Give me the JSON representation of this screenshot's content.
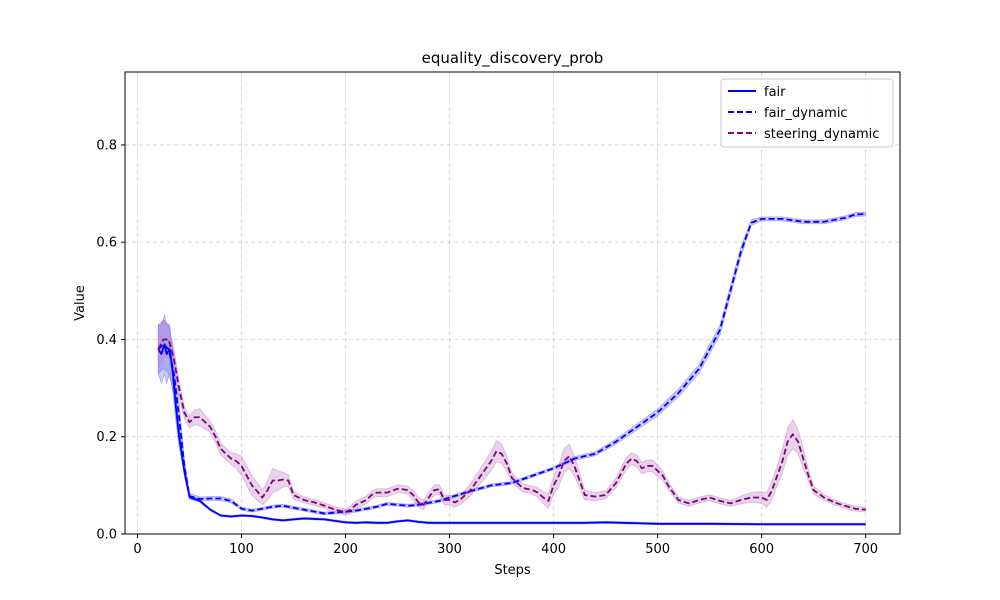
{
  "chart_data": {
    "type": "line",
    "title": "equality_discovery_prob",
    "xlabel": "Steps",
    "ylabel": "Value",
    "xlim": [
      -12,
      733
    ],
    "ylim": [
      0,
      0.95
    ],
    "xticks": [
      0,
      100,
      200,
      300,
      400,
      500,
      600,
      700
    ],
    "yticks": [
      0.0,
      0.2,
      0.4,
      0.6,
      0.8
    ],
    "xtick_labels": [
      "0",
      "100",
      "200",
      "300",
      "400",
      "500",
      "600",
      "700"
    ],
    "ytick_labels": [
      "0.0",
      "0.2",
      "0.4",
      "0.6",
      "0.8"
    ],
    "grid": true,
    "legend_position": "top-right",
    "series": [
      {
        "name": "fair",
        "style": "solid",
        "color": "#0000ff",
        "band_color": "#6b6bff",
        "x": [
          20,
          23,
          26,
          28,
          31,
          34,
          37,
          40,
          45,
          50,
          60,
          70,
          80,
          90,
          100,
          110,
          120,
          130,
          140,
          150,
          160,
          170,
          180,
          190,
          200,
          210,
          220,
          230,
          240,
          250,
          260,
          270,
          280,
          300,
          350,
          400,
          430,
          450,
          500,
          550,
          600,
          650,
          700
        ],
        "y": [
          0.38,
          0.37,
          0.39,
          0.37,
          0.38,
          0.33,
          0.26,
          0.2,
          0.13,
          0.076,
          0.068,
          0.05,
          0.038,
          0.036,
          0.038,
          0.037,
          0.034,
          0.03,
          0.028,
          0.03,
          0.032,
          0.031,
          0.03,
          0.027,
          0.024,
          0.023,
          0.024,
          0.023,
          0.023,
          0.026,
          0.028,
          0.025,
          0.023,
          0.023,
          0.023,
          0.023,
          0.023,
          0.024,
          0.021,
          0.021,
          0.02,
          0.02,
          0.02
        ],
        "band": [
          0.05,
          0.06,
          0.06,
          0.06,
          0.05,
          0.04,
          0.03,
          0.02,
          0.01,
          0.004,
          0.003,
          0.002,
          0.002,
          0.002,
          0.002,
          0.002,
          0.002,
          0.002,
          0.002,
          0.002,
          0.002,
          0.002,
          0.002,
          0.002,
          0.002,
          0.002,
          0.002,
          0.002,
          0.002,
          0.002,
          0.002,
          0.002,
          0.002,
          0.002,
          0.002,
          0.002,
          0.002,
          0.002,
          0.002,
          0.002,
          0.002,
          0.002,
          0.002
        ]
      },
      {
        "name": "fair_dynamic",
        "style": "dashed",
        "color": "#0000ff",
        "band_color": "#6b6bff",
        "x": [
          20,
          25,
          30,
          35,
          40,
          45,
          50,
          60,
          70,
          80,
          90,
          100,
          110,
          120,
          130,
          140,
          150,
          160,
          170,
          180,
          190,
          200,
          210,
          220,
          230,
          240,
          250,
          260,
          270,
          280,
          290,
          300,
          320,
          340,
          360,
          380,
          400,
          420,
          440,
          460,
          480,
          500,
          520,
          540,
          560,
          580,
          590,
          600,
          620,
          640,
          660,
          680,
          690,
          700
        ],
        "y": [
          0.38,
          0.39,
          0.38,
          0.33,
          0.24,
          0.14,
          0.078,
          0.072,
          0.073,
          0.073,
          0.068,
          0.052,
          0.048,
          0.052,
          0.056,
          0.058,
          0.054,
          0.05,
          0.046,
          0.042,
          0.044,
          0.046,
          0.048,
          0.052,
          0.056,
          0.062,
          0.06,
          0.058,
          0.06,
          0.064,
          0.068,
          0.075,
          0.088,
          0.1,
          0.105,
          0.12,
          0.135,
          0.155,
          0.165,
          0.19,
          0.22,
          0.25,
          0.29,
          0.34,
          0.42,
          0.58,
          0.64,
          0.648,
          0.648,
          0.642,
          0.642,
          0.65,
          0.657,
          0.658
        ],
        "band": [
          0.05,
          0.05,
          0.05,
          0.04,
          0.03,
          0.015,
          0.006,
          0.004,
          0.004,
          0.004,
          0.004,
          0.003,
          0.003,
          0.003,
          0.003,
          0.003,
          0.003,
          0.003,
          0.003,
          0.003,
          0.003,
          0.003,
          0.003,
          0.003,
          0.003,
          0.003,
          0.003,
          0.003,
          0.003,
          0.003,
          0.003,
          0.003,
          0.003,
          0.003,
          0.003,
          0.003,
          0.003,
          0.004,
          0.004,
          0.005,
          0.006,
          0.007,
          0.008,
          0.009,
          0.01,
          0.01,
          0.006,
          0.004,
          0.004,
          0.004,
          0.004,
          0.004,
          0.004,
          0.004
        ]
      },
      {
        "name": "steering_dynamic",
        "style": "dashed",
        "color": "#800080",
        "band_color": "#bf80bf",
        "x": [
          20,
          25,
          30,
          35,
          40,
          45,
          50,
          55,
          60,
          65,
          70,
          75,
          80,
          85,
          90,
          95,
          100,
          105,
          110,
          115,
          120,
          125,
          130,
          135,
          140,
          145,
          150,
          160,
          170,
          180,
          190,
          200,
          205,
          210,
          215,
          220,
          225,
          230,
          240,
          250,
          255,
          260,
          265,
          270,
          275,
          280,
          285,
          290,
          295,
          300,
          305,
          310,
          320,
          330,
          340,
          345,
          350,
          355,
          360,
          370,
          380,
          385,
          390,
          395,
          400,
          405,
          410,
          415,
          420,
          425,
          430,
          440,
          450,
          460,
          470,
          475,
          480,
          485,
          490,
          495,
          500,
          505,
          510,
          520,
          530,
          540,
          550,
          560,
          570,
          580,
          590,
          600,
          605,
          610,
          615,
          620,
          625,
          630,
          635,
          640,
          645,
          650,
          660,
          670,
          680,
          690,
          700
        ],
        "y": [
          0.38,
          0.4,
          0.4,
          0.36,
          0.3,
          0.25,
          0.23,
          0.24,
          0.24,
          0.23,
          0.22,
          0.2,
          0.175,
          0.165,
          0.155,
          0.15,
          0.14,
          0.12,
          0.1,
          0.088,
          0.075,
          0.09,
          0.11,
          0.11,
          0.112,
          0.11,
          0.08,
          0.07,
          0.065,
          0.058,
          0.05,
          0.045,
          0.05,
          0.06,
          0.065,
          0.07,
          0.08,
          0.085,
          0.085,
          0.093,
          0.092,
          0.09,
          0.08,
          0.065,
          0.06,
          0.075,
          0.09,
          0.092,
          0.07,
          0.07,
          0.065,
          0.07,
          0.09,
          0.12,
          0.15,
          0.17,
          0.165,
          0.145,
          0.115,
          0.095,
          0.09,
          0.085,
          0.075,
          0.068,
          0.1,
          0.12,
          0.15,
          0.16,
          0.14,
          0.11,
          0.08,
          0.077,
          0.08,
          0.105,
          0.145,
          0.155,
          0.15,
          0.135,
          0.14,
          0.14,
          0.13,
          0.12,
          0.1,
          0.07,
          0.063,
          0.07,
          0.075,
          0.068,
          0.063,
          0.07,
          0.075,
          0.075,
          0.07,
          0.09,
          0.12,
          0.15,
          0.19,
          0.205,
          0.19,
          0.155,
          0.12,
          0.09,
          0.075,
          0.065,
          0.058,
          0.052,
          0.05
        ],
        "band": [
          0.04,
          0.04,
          0.03,
          0.02,
          0.015,
          0.012,
          0.012,
          0.015,
          0.018,
          0.014,
          0.012,
          0.012,
          0.012,
          0.012,
          0.012,
          0.015,
          0.02,
          0.02,
          0.02,
          0.018,
          0.015,
          0.02,
          0.025,
          0.02,
          0.015,
          0.012,
          0.008,
          0.006,
          0.006,
          0.006,
          0.006,
          0.006,
          0.008,
          0.008,
          0.008,
          0.008,
          0.008,
          0.008,
          0.008,
          0.008,
          0.008,
          0.008,
          0.01,
          0.01,
          0.01,
          0.01,
          0.01,
          0.01,
          0.01,
          0.01,
          0.01,
          0.01,
          0.012,
          0.015,
          0.02,
          0.022,
          0.02,
          0.015,
          0.01,
          0.008,
          0.008,
          0.01,
          0.012,
          0.015,
          0.018,
          0.022,
          0.025,
          0.025,
          0.02,
          0.015,
          0.01,
          0.008,
          0.008,
          0.01,
          0.012,
          0.012,
          0.012,
          0.012,
          0.012,
          0.012,
          0.012,
          0.01,
          0.008,
          0.006,
          0.006,
          0.006,
          0.006,
          0.006,
          0.006,
          0.008,
          0.01,
          0.012,
          0.015,
          0.018,
          0.02,
          0.025,
          0.028,
          0.03,
          0.025,
          0.02,
          0.012,
          0.008,
          0.006,
          0.005,
          0.005,
          0.005,
          0.005
        ]
      }
    ]
  }
}
